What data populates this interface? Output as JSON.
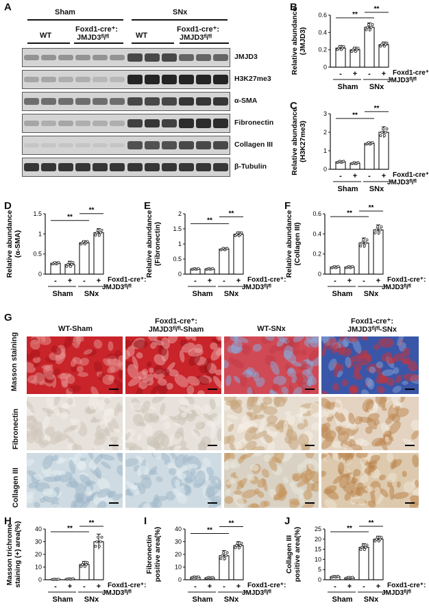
{
  "panels": {
    "A": "A",
    "B": "B",
    "C": "C",
    "D": "D",
    "E": "E",
    "F": "F",
    "G": "G",
    "H": "H",
    "I": "I",
    "J": "J"
  },
  "western": {
    "groups": [
      "Sham",
      "SNx"
    ],
    "subgroups": [
      "WT",
      "Foxd1-cre⁺:",
      "JMJD3ᶠˡ/ᶠˡ",
      "WT",
      "Foxd1-cre⁺:",
      "JMJD3ᶠˡ/ᶠˡ"
    ],
    "blots": [
      "JMJD3",
      "H3K27me3",
      "α-SMA",
      "Fibronectin",
      "Collagen III",
      "β-Tubulin"
    ],
    "band_intensity": [
      [
        0.35,
        0.35,
        0.35,
        0.35,
        0.35,
        0.35,
        0.75,
        0.75,
        0.75,
        0.6,
        0.6,
        0.6
      ],
      [
        0.25,
        0.25,
        0.2,
        0.2,
        0.15,
        0.15,
        0.95,
        0.95,
        0.95,
        0.95,
        0.95,
        0.95
      ],
      [
        0.55,
        0.55,
        0.55,
        0.55,
        0.55,
        0.55,
        0.75,
        0.75,
        0.75,
        0.85,
        0.85,
        0.85
      ],
      [
        0.25,
        0.2,
        0.25,
        0.2,
        0.2,
        0.2,
        0.8,
        0.85,
        0.8,
        0.9,
        0.9,
        0.9
      ],
      [
        0.05,
        0.05,
        0.05,
        0.05,
        0.05,
        0.05,
        0.7,
        0.7,
        0.7,
        0.75,
        0.75,
        0.75
      ],
      [
        0.85,
        0.85,
        0.85,
        0.85,
        0.85,
        0.85,
        0.85,
        0.85,
        0.85,
        0.85,
        0.85,
        0.85
      ]
    ]
  },
  "legend": {
    "foxd1": "Foxd1-cre⁺:",
    "jmjd3": "JMJD3ᶠˡ/ᶠˡ",
    "minus": "-",
    "plus": "+",
    "sham": "Sham",
    "snx": "SNx",
    "sig": "**"
  },
  "chart_data": [
    {
      "panel": "B",
      "type": "bar",
      "ylabel": "Relative abundance\n(JMJD3)",
      "ylim": [
        0,
        0.6
      ],
      "yticks": [
        0,
        0.2,
        0.4,
        0.6
      ],
      "categories": [
        "Sham -",
        "Sham +",
        "SNx -",
        "SNx +"
      ],
      "values": [
        0.22,
        0.2,
        0.46,
        0.26
      ],
      "errors": [
        0.03,
        0.03,
        0.05,
        0.03
      ]
    },
    {
      "panel": "C",
      "type": "bar",
      "ylabel": "Relative abundance\n(H3K27me3)",
      "ylim": [
        0,
        3
      ],
      "yticks": [
        0,
        1,
        2,
        3
      ],
      "categories": [
        "Sham -",
        "Sham +",
        "SNx -",
        "SNx +"
      ],
      "values": [
        0.4,
        0.33,
        1.4,
        2.0
      ],
      "errors": [
        0.05,
        0.05,
        0.07,
        0.3
      ]
    },
    {
      "panel": "D",
      "type": "bar",
      "ylabel": "Relative abundance\n(α-SMA)",
      "ylim": [
        0,
        1.5
      ],
      "yticks": [
        0,
        0.5,
        1,
        1.5
      ],
      "categories": [
        "Sham -",
        "Sham +",
        "SNx -",
        "SNx +"
      ],
      "values": [
        0.27,
        0.24,
        0.78,
        1.03
      ],
      "errors": [
        0.03,
        0.08,
        0.05,
        0.1
      ]
    },
    {
      "panel": "E",
      "type": "bar",
      "ylabel": "Relative abundance\n(Fibronectin)",
      "ylim": [
        0,
        2
      ],
      "yticks": [
        0,
        0.5,
        1,
        1.5,
        2
      ],
      "categories": [
        "Sham -",
        "Sham +",
        "SNx -",
        "SNx +"
      ],
      "values": [
        0.17,
        0.17,
        0.83,
        1.32
      ],
      "errors": [
        0.02,
        0.02,
        0.04,
        0.08
      ]
    },
    {
      "panel": "F",
      "type": "bar",
      "ylabel": "Relative abundance\n(Collagen III)",
      "ylim": [
        0,
        0.6
      ],
      "yticks": [
        0,
        0.2,
        0.4,
        0.6
      ],
      "categories": [
        "Sham -",
        "Sham +",
        "SNx -",
        "SNx +"
      ],
      "values": [
        0.07,
        0.07,
        0.31,
        0.44
      ],
      "errors": [
        0.01,
        0.01,
        0.05,
        0.05
      ]
    },
    {
      "panel": "H",
      "type": "bar",
      "ylabel": "Masson trichrome\nstaining (+) area(%)",
      "ylim": [
        0,
        40
      ],
      "yticks": [
        0,
        10,
        20,
        30,
        40
      ],
      "categories": [
        "Sham -",
        "Sham +",
        "SNx -",
        "SNx +"
      ],
      "values": [
        0.3,
        0.6,
        12,
        30
      ],
      "errors": [
        0.2,
        0.3,
        2.5,
        6
      ]
    },
    {
      "panel": "I",
      "type": "bar",
      "ylabel": "Fibronectin\npositive area(%)",
      "ylim": [
        0,
        40
      ],
      "yticks": [
        0,
        10,
        20,
        30,
        40
      ],
      "categories": [
        "Sham -",
        "Sham +",
        "SNx -",
        "SNx +"
      ],
      "values": [
        2,
        1.5,
        19,
        27
      ],
      "errors": [
        0.5,
        0.5,
        4,
        3
      ]
    },
    {
      "panel": "J",
      "type": "bar",
      "ylabel": "Collagen III\npositive area(%)",
      "ylim": [
        0,
        25
      ],
      "yticks": [
        0,
        5,
        10,
        15,
        20,
        25
      ],
      "categories": [
        "Sham -",
        "Sham +",
        "SNx -",
        "SNx +"
      ],
      "values": [
        1.5,
        1,
        16,
        20
      ],
      "errors": [
        0.3,
        0.3,
        1.8,
        1.5
      ]
    }
  ],
  "histology": {
    "columns": [
      "WT-Sham",
      "Foxd1-cre⁺:\nJMJD3ᶠˡ/ᶠˡ-Sham",
      "WT-SNx",
      "Foxd1-cre⁺:\nJMJD3ᶠˡ/ᶠˡ-SNx"
    ],
    "rows": [
      "Masson staining",
      "Fibronectin",
      "Collagen III"
    ]
  },
  "colors": {
    "blot_bg": "#d4d4d4",
    "band": "#1a1a1a",
    "masson_red": "#c8242a",
    "masson_blue": "#3a56a8",
    "ihc_bg": "#e6e1da",
    "collagen_bg": "#cfdbe2",
    "dab": "#b9834a"
  }
}
